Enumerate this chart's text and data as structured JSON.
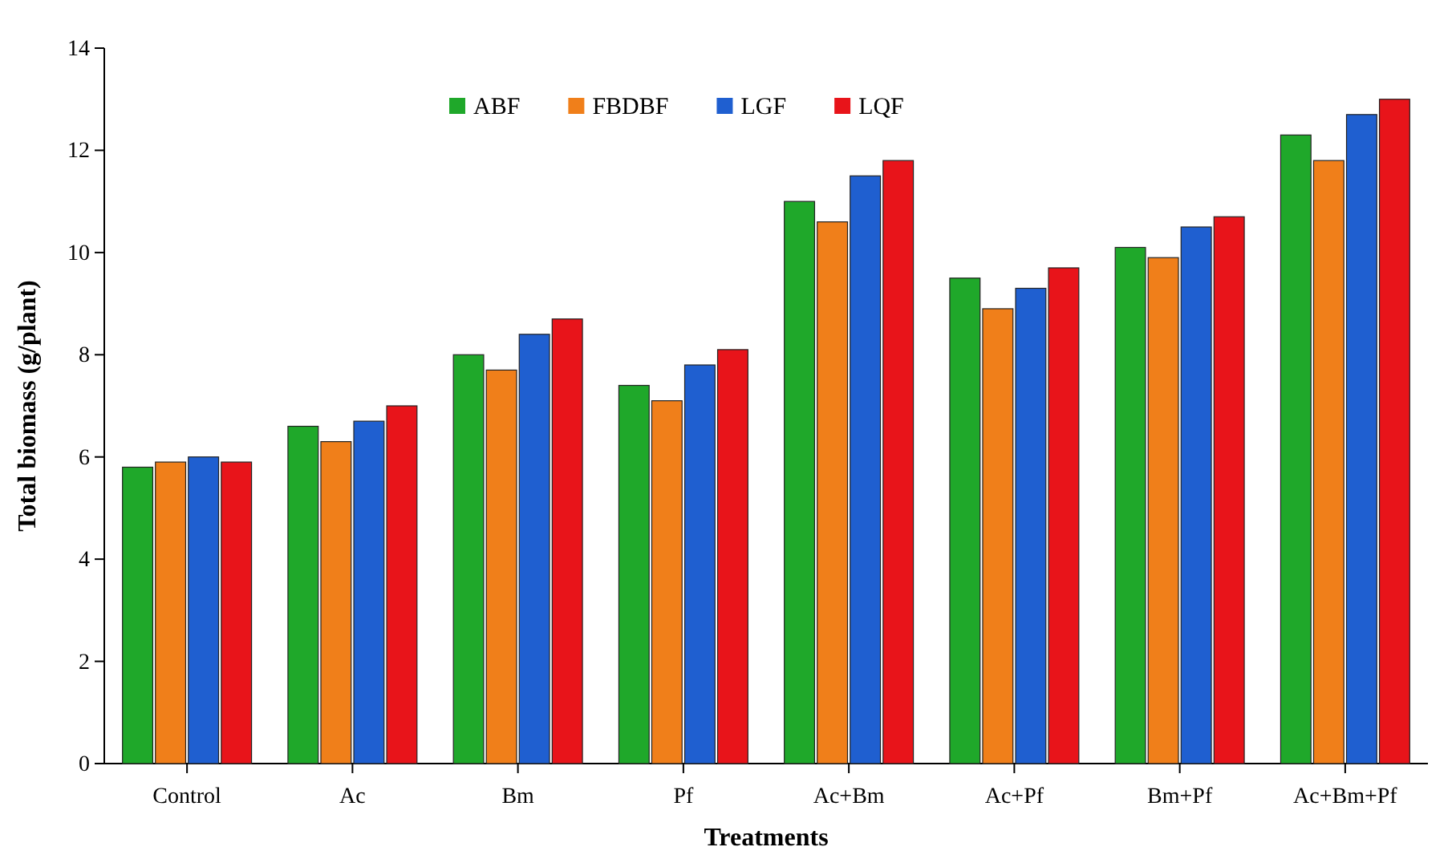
{
  "chart_data": {
    "type": "bar",
    "xlabel": "Treatments",
    "ylabel": "Total biomass (g/plant)",
    "categories": [
      "Control",
      "Ac",
      "Bm",
      "Pf",
      "Ac+Bm",
      "Ac+Pf",
      "Bm+Pf",
      "Ac+Bm+Pf"
    ],
    "series": [
      {
        "name": "ABF",
        "color": "#1fa82a",
        "values": [
          5.8,
          6.6,
          8.0,
          7.4,
          11.0,
          9.5,
          10.1,
          12.3
        ]
      },
      {
        "name": "FBDBF",
        "color": "#f07f1a",
        "values": [
          5.9,
          6.3,
          7.7,
          7.1,
          10.6,
          8.9,
          9.9,
          11.8
        ]
      },
      {
        "name": "LGF",
        "color": "#1f5fd0",
        "values": [
          6.0,
          6.7,
          8.4,
          7.8,
          11.5,
          9.3,
          10.5,
          12.7
        ]
      },
      {
        "name": "LQF",
        "color": "#e8141a",
        "values": [
          5.9,
          7.0,
          8.7,
          8.1,
          11.8,
          9.7,
          10.7,
          13.0
        ]
      }
    ],
    "ylim": [
      0,
      14
    ],
    "yticks": [
      0,
      2,
      4,
      6,
      8,
      10,
      12,
      14
    ],
    "grid": false,
    "legend": "top"
  }
}
